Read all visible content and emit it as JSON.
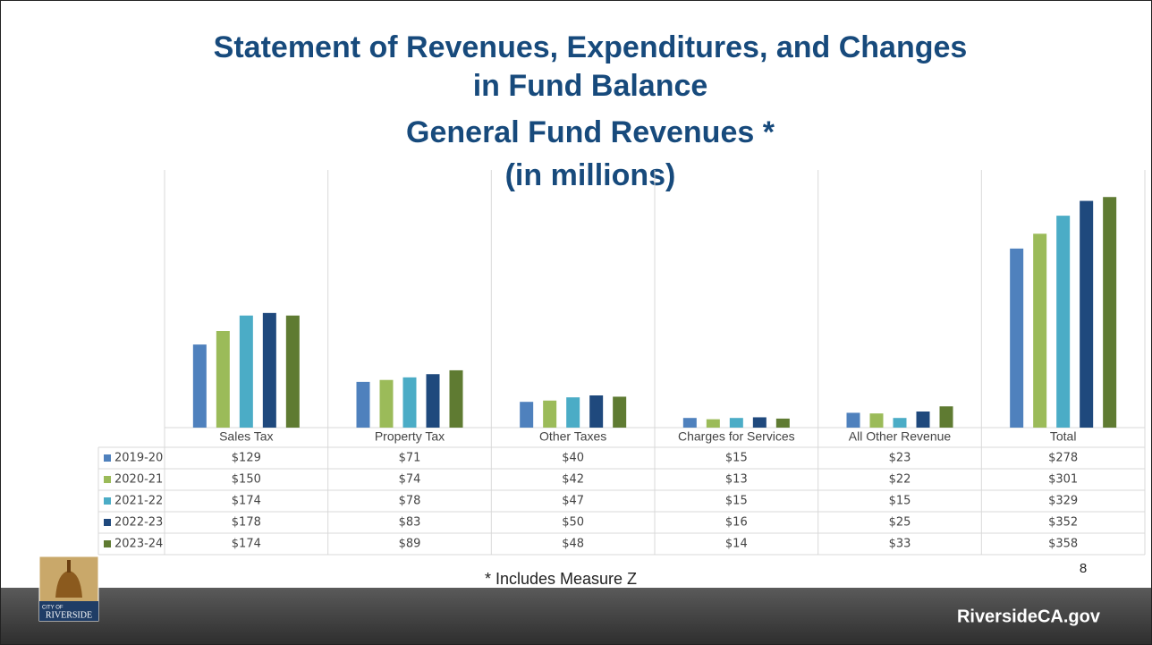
{
  "chart_data": {
    "type": "bar",
    "title": [
      "Statement of Revenues, Expenditures, and Changes",
      "in Fund Balance",
      "General Fund Revenues *",
      "(in millions)"
    ],
    "categories": [
      "Sales Tax",
      "Property Tax",
      "Other Taxes",
      "Charges for Services",
      "All Other Revenue",
      "Total"
    ],
    "series": [
      {
        "name": "2019-20",
        "color": "#4f81bd",
        "values": [
          129,
          71,
          40,
          15,
          23,
          278
        ],
        "value_labels": [
          "$129",
          "$71",
          "$40",
          "$15",
          "$23",
          "$278"
        ]
      },
      {
        "name": "2020-21",
        "color": "#9bbb59",
        "values": [
          150,
          74,
          42,
          13,
          22,
          301
        ],
        "value_labels": [
          "$150",
          "$74",
          "$42",
          "$13",
          "$22",
          "$301"
        ]
      },
      {
        "name": "2021-22",
        "color": "#4bacc6",
        "values": [
          174,
          78,
          47,
          15,
          15,
          329
        ],
        "value_labels": [
          "$174",
          "$78",
          "$47",
          "$15",
          "$15",
          "$329"
        ]
      },
      {
        "name": "2022-23",
        "color": "#1f497d",
        "values": [
          178,
          83,
          50,
          16,
          25,
          352
        ],
        "value_labels": [
          "$178",
          "$83",
          "$50",
          "$16",
          "$25",
          "$352"
        ]
      },
      {
        "name": "2023-24",
        "color": "#5f7b32",
        "values": [
          174,
          89,
          48,
          14,
          33,
          358
        ],
        "value_labels": [
          "$174",
          "$89",
          "$48",
          "$14",
          "$33",
          "$358"
        ]
      }
    ],
    "ylim": [
      0,
      400
    ]
  },
  "footnote": "* Includes Measure Z",
  "page_number": "8",
  "website": "RiversideCA.gov",
  "logo_text": [
    "CITY OF",
    "RIVERSIDE"
  ]
}
